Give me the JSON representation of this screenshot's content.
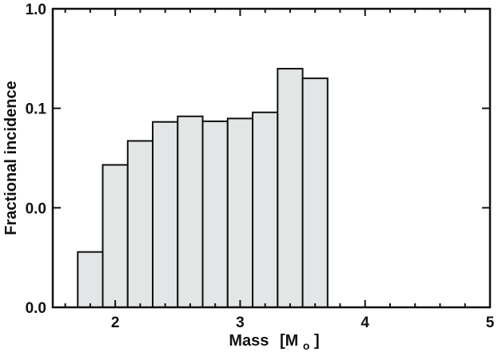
{
  "chart_data": {
    "type": "bar",
    "xlabel": "Mass",
    "xlabel_unit": "[M",
    "xlabel_unit_sub": "o",
    "xlabel_unit_close": "]",
    "ylabel": "Fractional incidence",
    "xlim": [
      1.5,
      5.0
    ],
    "ylim": [
      0.001,
      1.0
    ],
    "y_scale": "log",
    "x_ticks": [
      {
        "value": 2,
        "label": "2"
      },
      {
        "value": 3,
        "label": "3"
      },
      {
        "value": 4,
        "label": "4"
      },
      {
        "value": 5,
        "label": "5"
      }
    ],
    "y_ticks": [
      {
        "value": 0.001,
        "label": "0.0"
      },
      {
        "value": 0.01,
        "label": "0.0"
      },
      {
        "value": 0.1,
        "label": "0.1"
      },
      {
        "value": 1.0,
        "label": "1.0"
      }
    ],
    "bar_width": 0.2,
    "bar_color": "#e3e6e6",
    "bars": [
      {
        "x": 1.8,
        "value": 0.0036
      },
      {
        "x": 2.0,
        "value": 0.027
      },
      {
        "x": 2.2,
        "value": 0.047
      },
      {
        "x": 2.4,
        "value": 0.073
      },
      {
        "x": 2.6,
        "value": 0.083
      },
      {
        "x": 2.8,
        "value": 0.074
      },
      {
        "x": 3.0,
        "value": 0.079
      },
      {
        "x": 3.2,
        "value": 0.091
      },
      {
        "x": 3.4,
        "value": 0.25
      },
      {
        "x": 3.6,
        "value": 0.2
      }
    ],
    "grid": false
  }
}
